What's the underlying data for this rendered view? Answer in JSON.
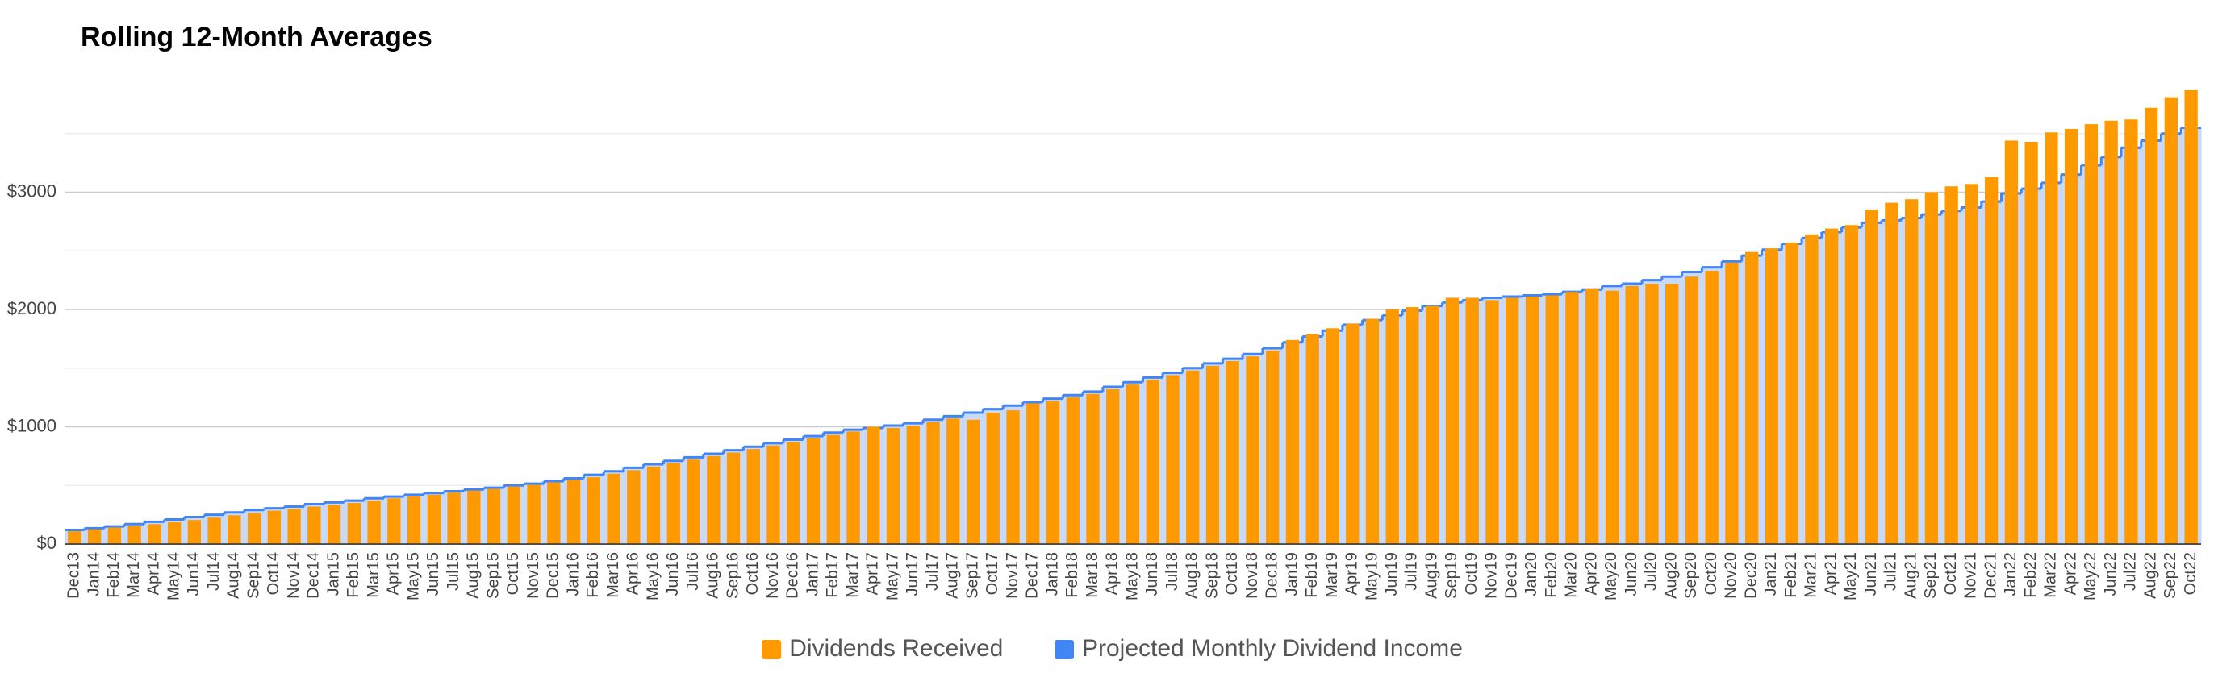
{
  "chart_data": {
    "type": "bar-step",
    "title": "Rolling 12-Month Averages",
    "categories": [
      "Dec13",
      "Jan14",
      "Feb14",
      "Mar14",
      "Apr14",
      "May14",
      "Jun14",
      "Jul14",
      "Aug14",
      "Sep14",
      "Oct14",
      "Nov14",
      "Dec14",
      "Jan15",
      "Feb15",
      "Mar15",
      "Apr15",
      "May15",
      "Jun15",
      "Jul15",
      "Aug15",
      "Sep15",
      "Oct15",
      "Nov15",
      "Dec15",
      "Jan16",
      "Feb16",
      "Mar16",
      "Apr16",
      "May16",
      "Jun16",
      "Jul16",
      "Aug16",
      "Sep16",
      "Oct16",
      "Nov16",
      "Dec16",
      "Jan17",
      "Feb17",
      "Mar17",
      "Apr17",
      "May17",
      "Jun17",
      "Jul17",
      "Aug17",
      "Sep17",
      "Oct17",
      "Nov17",
      "Dec17",
      "Jan18",
      "Feb18",
      "Mar18",
      "Apr18",
      "May18",
      "Jun18",
      "Jul18",
      "Aug18",
      "Sep18",
      "Oct18",
      "Nov18",
      "Dec18",
      "Jan19",
      "Feb19",
      "Mar19",
      "Apr19",
      "May19",
      "Jun19",
      "Jul19",
      "Aug19",
      "Sep19",
      "Oct19",
      "Nov19",
      "Dec19",
      "Jan20",
      "Feb20",
      "Mar20",
      "Apr20",
      "May20",
      "Jun20",
      "Jul20",
      "Aug20",
      "Sep20",
      "Oct20",
      "Nov20",
      "Dec20",
      "Jan21",
      "Feb21",
      "Mar21",
      "Apr21",
      "May21",
      "Jun21",
      "Jul21",
      "Aug21",
      "Sep21",
      "Oct21",
      "Nov21",
      "Dec21",
      "Jan22",
      "Feb22",
      "Mar22",
      "Apr22",
      "May22",
      "Jun22",
      "Jul22",
      "Aug22",
      "Sep22",
      "Oct22"
    ],
    "series": [
      {
        "name": "Dividends Received",
        "color": "#ff9900",
        "style": "bar",
        "values": [
          110,
          125,
          140,
          155,
          170,
          185,
          205,
          225,
          245,
          265,
          285,
          300,
          320,
          335,
          350,
          370,
          390,
          405,
          420,
          440,
          455,
          470,
          490,
          505,
          525,
          545,
          570,
          600,
          630,
          660,
          690,
          720,
          750,
          780,
          810,
          840,
          870,
          900,
          930,
          960,
          1000,
          990,
          1010,
          1040,
          1070,
          1060,
          1120,
          1140,
          1200,
          1220,
          1250,
          1280,
          1320,
          1360,
          1400,
          1440,
          1480,
          1520,
          1560,
          1600,
          1650,
          1740,
          1790,
          1840,
          1880,
          1920,
          2000,
          2020,
          2030,
          2100,
          2100,
          2080,
          2100,
          2110,
          2120,
          2150,
          2180,
          2160,
          2200,
          2220,
          2220,
          2280,
          2330,
          2400,
          2490,
          2520,
          2570,
          2640,
          2690,
          2720,
          2850,
          2910,
          2940,
          3000,
          3050,
          3070,
          3130,
          3440,
          3430,
          3510,
          3540,
          3580,
          3610,
          3620,
          3720,
          3810,
          3870
        ]
      },
      {
        "name": "Projected Monthly Dividend Income",
        "color": "#4285f4",
        "area_color": "#c9daf8",
        "style": "step-area",
        "values": [
          120,
          135,
          150,
          170,
          190,
          210,
          230,
          250,
          270,
          290,
          305,
          320,
          340,
          355,
          370,
          390,
          405,
          420,
          435,
          450,
          465,
          480,
          500,
          515,
          535,
          560,
          590,
          620,
          650,
          680,
          710,
          740,
          770,
          800,
          830,
          860,
          890,
          920,
          950,
          975,
          990,
          1010,
          1030,
          1060,
          1090,
          1120,
          1150,
          1180,
          1210,
          1240,
          1270,
          1300,
          1340,
          1380,
          1420,
          1460,
          1500,
          1540,
          1580,
          1620,
          1670,
          1720,
          1770,
          1820,
          1870,
          1910,
          1950,
          1990,
          2030,
          2060,
          2080,
          2100,
          2110,
          2120,
          2130,
          2150,
          2170,
          2200,
          2220,
          2250,
          2280,
          2320,
          2360,
          2410,
          2460,
          2510,
          2560,
          2610,
          2660,
          2700,
          2740,
          2760,
          2780,
          2810,
          2840,
          2870,
          2920,
          2990,
          3030,
          3080,
          3150,
          3230,
          3300,
          3380,
          3440,
          3500,
          3550
        ]
      }
    ],
    "ylim": [
      0,
      4000
    ],
    "yticks": [
      {
        "value": 0,
        "label": "$0"
      },
      {
        "value": 1000,
        "label": "$1000"
      },
      {
        "value": 2000,
        "label": "$2000"
      },
      {
        "value": 3000,
        "label": "$3000"
      }
    ],
    "minor_yticks": [
      500,
      1500,
      2500,
      3500
    ],
    "grid": true,
    "legend": "bottom"
  }
}
